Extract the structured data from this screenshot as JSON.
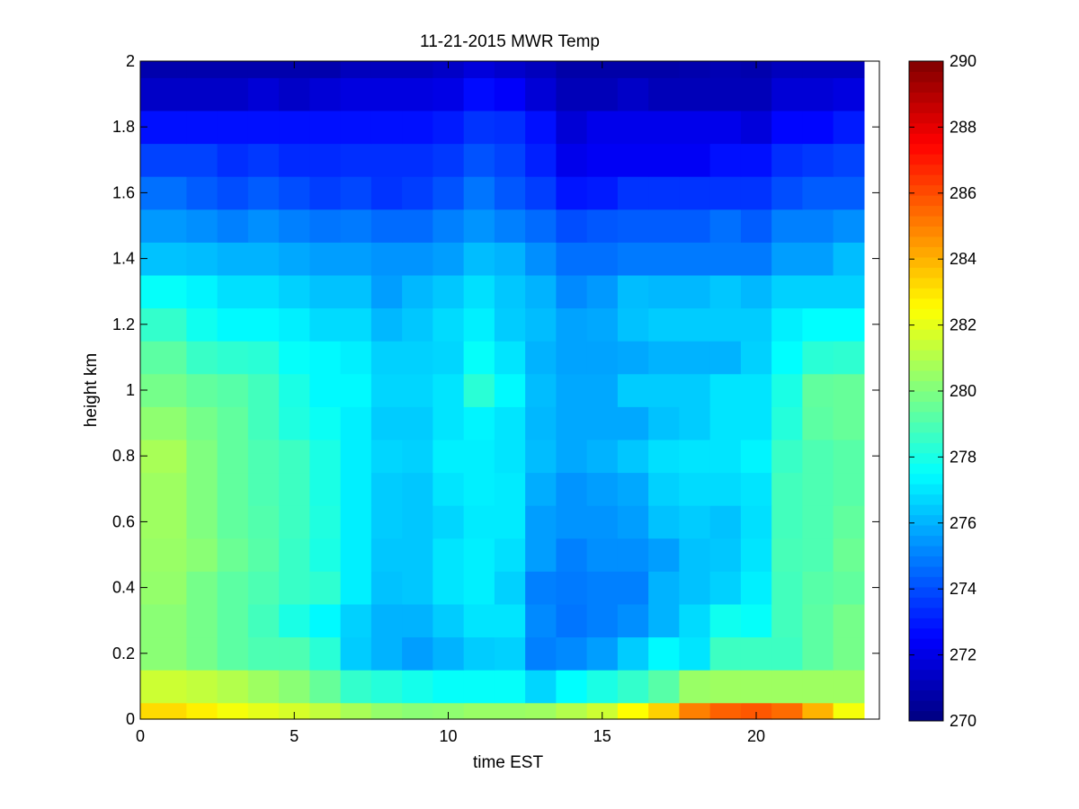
{
  "chart_data": {
    "type": "heatmap",
    "title": "11-21-2015 MWR Temp",
    "xlabel": "time EST",
    "ylabel": "height km",
    "xlim": [
      0,
      24
    ],
    "ylim": [
      0,
      2
    ],
    "x_ticks": [
      0,
      5,
      10,
      15,
      20
    ],
    "y_ticks": [
      0,
      0.2,
      0.4,
      0.6,
      0.8,
      1,
      1.2,
      1.4,
      1.6,
      1.8,
      2
    ],
    "x_tick_labels": [
      "0",
      "5",
      "10",
      "15",
      "20"
    ],
    "y_tick_labels": [
      "0",
      "0.2",
      "0.4",
      "0.6",
      "0.8",
      "1",
      "1.2",
      "1.4",
      "1.6",
      "1.8",
      "2"
    ],
    "colormap": "jet",
    "color_range": [
      270,
      290
    ],
    "colorbar": {
      "ticks": [
        270,
        272,
        274,
        276,
        278,
        280,
        282,
        284,
        286,
        288,
        290
      ],
      "tick_labels": [
        "270",
        "272",
        "274",
        "276",
        "278",
        "280",
        "282",
        "284",
        "286",
        "288",
        "290"
      ]
    },
    "x_edges": [
      0,
      1.5,
      2.5,
      3.5,
      4.5,
      5.5,
      6.5,
      7.5,
      8.5,
      9.5,
      10.5,
      11.5,
      12.5,
      13.5,
      14.5,
      15.5,
      16.5,
      17.5,
      18.5,
      19.5,
      20.5,
      21.5,
      22.5,
      23.5
    ],
    "y_edges": [
      0,
      0.05,
      0.15,
      0.25,
      0.35,
      0.45,
      0.55,
      0.65,
      0.75,
      0.85,
      0.95,
      1.05,
      1.15,
      1.25,
      1.35,
      1.45,
      1.55,
      1.65,
      1.75,
      1.85,
      1.95,
      2.0
    ],
    "values": [
      [
        283.2,
        282.8,
        282.3,
        282.0,
        281.7,
        281.3,
        280.8,
        280.4,
        280.2,
        280.3,
        280.5,
        280.5,
        280.6,
        281.0,
        281.5,
        282.5,
        283.4,
        285.0,
        285.6,
        285.8,
        285.4,
        284.0,
        282.3
      ],
      [
        281.5,
        281.3,
        281.0,
        280.6,
        280.2,
        279.5,
        278.5,
        278.2,
        277.9,
        277.6,
        277.6,
        277.6,
        276.7,
        277.5,
        278.0,
        278.5,
        279.2,
        280.5,
        280.6,
        280.6,
        280.6,
        280.6,
        280.6
      ],
      [
        280.2,
        279.8,
        279.3,
        279.0,
        279.0,
        278.3,
        276.5,
        276.0,
        275.6,
        276.0,
        276.5,
        276.6,
        275.0,
        275.2,
        275.6,
        276.5,
        277.4,
        277.0,
        278.7,
        278.7,
        278.7,
        279.3,
        279.8
      ],
      [
        280.2,
        279.8,
        279.3,
        278.8,
        278.0,
        277.4,
        276.6,
        276.0,
        276.0,
        276.5,
        277.0,
        277.0,
        275.2,
        274.8,
        275.0,
        275.3,
        276.0,
        276.8,
        277.8,
        277.6,
        278.8,
        279.3,
        279.8
      ],
      [
        280.4,
        279.8,
        279.3,
        279.0,
        278.6,
        278.4,
        277.2,
        276.3,
        276.4,
        277.0,
        277.2,
        276.6,
        275.0,
        274.9,
        275.0,
        275.0,
        276.0,
        276.3,
        276.6,
        277.2,
        278.8,
        279.2,
        279.4
      ],
      [
        280.5,
        280.2,
        279.6,
        279.2,
        278.6,
        278.0,
        277.2,
        276.4,
        276.4,
        277.0,
        277.2,
        276.9,
        275.6,
        275.0,
        275.3,
        275.3,
        275.6,
        276.3,
        276.4,
        277.0,
        278.9,
        279.0,
        279.6
      ],
      [
        280.6,
        280.0,
        279.4,
        279.1,
        278.7,
        278.1,
        277.2,
        276.5,
        276.4,
        276.7,
        277.1,
        277.1,
        275.6,
        275.4,
        275.4,
        275.6,
        276.3,
        276.5,
        276.3,
        276.9,
        278.8,
        279.0,
        279.4
      ],
      [
        280.6,
        280.0,
        279.4,
        279.0,
        278.7,
        278.0,
        277.2,
        276.5,
        276.4,
        277.0,
        277.2,
        277.1,
        275.9,
        275.4,
        275.6,
        275.8,
        276.6,
        276.8,
        276.8,
        277.0,
        278.8,
        279.0,
        279.2
      ],
      [
        280.8,
        280.0,
        279.4,
        279.0,
        278.7,
        278.0,
        277.2,
        276.7,
        276.6,
        277.2,
        277.2,
        277.0,
        276.2,
        275.8,
        276.0,
        276.4,
        276.9,
        277.0,
        277.0,
        277.3,
        278.6,
        279.0,
        279.2
      ],
      [
        280.3,
        279.8,
        279.4,
        278.8,
        278.1,
        277.7,
        277.2,
        276.5,
        276.5,
        277.0,
        277.3,
        277.0,
        276.1,
        275.8,
        275.8,
        275.8,
        276.3,
        276.5,
        277.0,
        277.0,
        278.2,
        279.3,
        279.5
      ],
      [
        279.8,
        279.4,
        279.2,
        278.8,
        278.0,
        277.4,
        277.4,
        276.7,
        276.7,
        277.0,
        278.3,
        277.4,
        276.2,
        275.8,
        275.8,
        276.5,
        276.5,
        276.5,
        277.0,
        277.0,
        278.0,
        279.4,
        279.5
      ],
      [
        279.3,
        278.6,
        278.4,
        278.3,
        277.6,
        277.4,
        277.2,
        276.6,
        276.6,
        276.7,
        277.6,
        277.0,
        276.0,
        275.7,
        275.7,
        275.8,
        276.0,
        276.0,
        276.0,
        276.6,
        277.5,
        278.3,
        278.4
      ],
      [
        278.5,
        277.8,
        277.4,
        277.4,
        277.2,
        276.8,
        276.8,
        276.1,
        276.4,
        276.8,
        277.2,
        276.5,
        276.2,
        275.7,
        275.8,
        276.3,
        276.5,
        276.5,
        276.5,
        276.5,
        277.2,
        277.5,
        277.5
      ],
      [
        277.6,
        277.3,
        276.9,
        276.9,
        276.6,
        276.3,
        276.3,
        275.6,
        276.1,
        276.4,
        276.9,
        276.4,
        276.0,
        275.2,
        275.5,
        276.2,
        276.1,
        276.1,
        276.4,
        276.1,
        276.6,
        276.6,
        276.6
      ],
      [
        276.3,
        276.2,
        276.0,
        276.0,
        275.8,
        275.6,
        275.6,
        275.4,
        275.4,
        275.6,
        276.2,
        276.0,
        275.3,
        274.7,
        274.7,
        274.9,
        274.9,
        274.9,
        274.9,
        274.9,
        275.6,
        275.6,
        276.2
      ],
      [
        275.5,
        275.3,
        275.0,
        275.3,
        275.0,
        274.8,
        274.9,
        274.6,
        274.6,
        275.0,
        275.4,
        275.0,
        274.6,
        274.0,
        274.2,
        274.3,
        274.3,
        274.3,
        274.7,
        274.3,
        275.0,
        275.0,
        275.3
      ],
      [
        274.7,
        274.3,
        274.0,
        274.3,
        274.0,
        273.7,
        273.9,
        273.5,
        273.7,
        274.1,
        274.8,
        274.2,
        273.7,
        272.9,
        273.0,
        273.5,
        273.5,
        273.5,
        273.5,
        273.5,
        274.0,
        274.3,
        274.3
      ],
      [
        273.8,
        273.8,
        273.4,
        273.6,
        273.3,
        273.3,
        273.4,
        273.4,
        273.4,
        273.6,
        274.1,
        273.8,
        273.1,
        272.1,
        272.3,
        272.3,
        272.3,
        272.3,
        272.8,
        272.8,
        273.4,
        273.6,
        273.8
      ],
      [
        272.8,
        272.8,
        272.8,
        272.8,
        272.8,
        272.8,
        272.8,
        272.8,
        272.8,
        273.0,
        273.5,
        273.4,
        272.8,
        271.7,
        272.1,
        272.1,
        272.1,
        272.1,
        272.1,
        271.8,
        272.6,
        272.6,
        273.0
      ],
      [
        271.4,
        271.4,
        271.4,
        271.7,
        271.4,
        271.7,
        271.9,
        271.9,
        271.9,
        272.0,
        272.7,
        272.4,
        271.7,
        271.1,
        271.1,
        271.4,
        271.1,
        271.1,
        271.1,
        271.1,
        271.7,
        271.7,
        271.9
      ],
      [
        270.9,
        270.9,
        270.9,
        270.9,
        270.9,
        270.9,
        271.2,
        271.2,
        271.2,
        271.4,
        271.8,
        271.5,
        271.2,
        270.8,
        270.8,
        270.8,
        270.8,
        270.9,
        271.0,
        270.9,
        271.2,
        271.2,
        271.2
      ]
    ]
  }
}
